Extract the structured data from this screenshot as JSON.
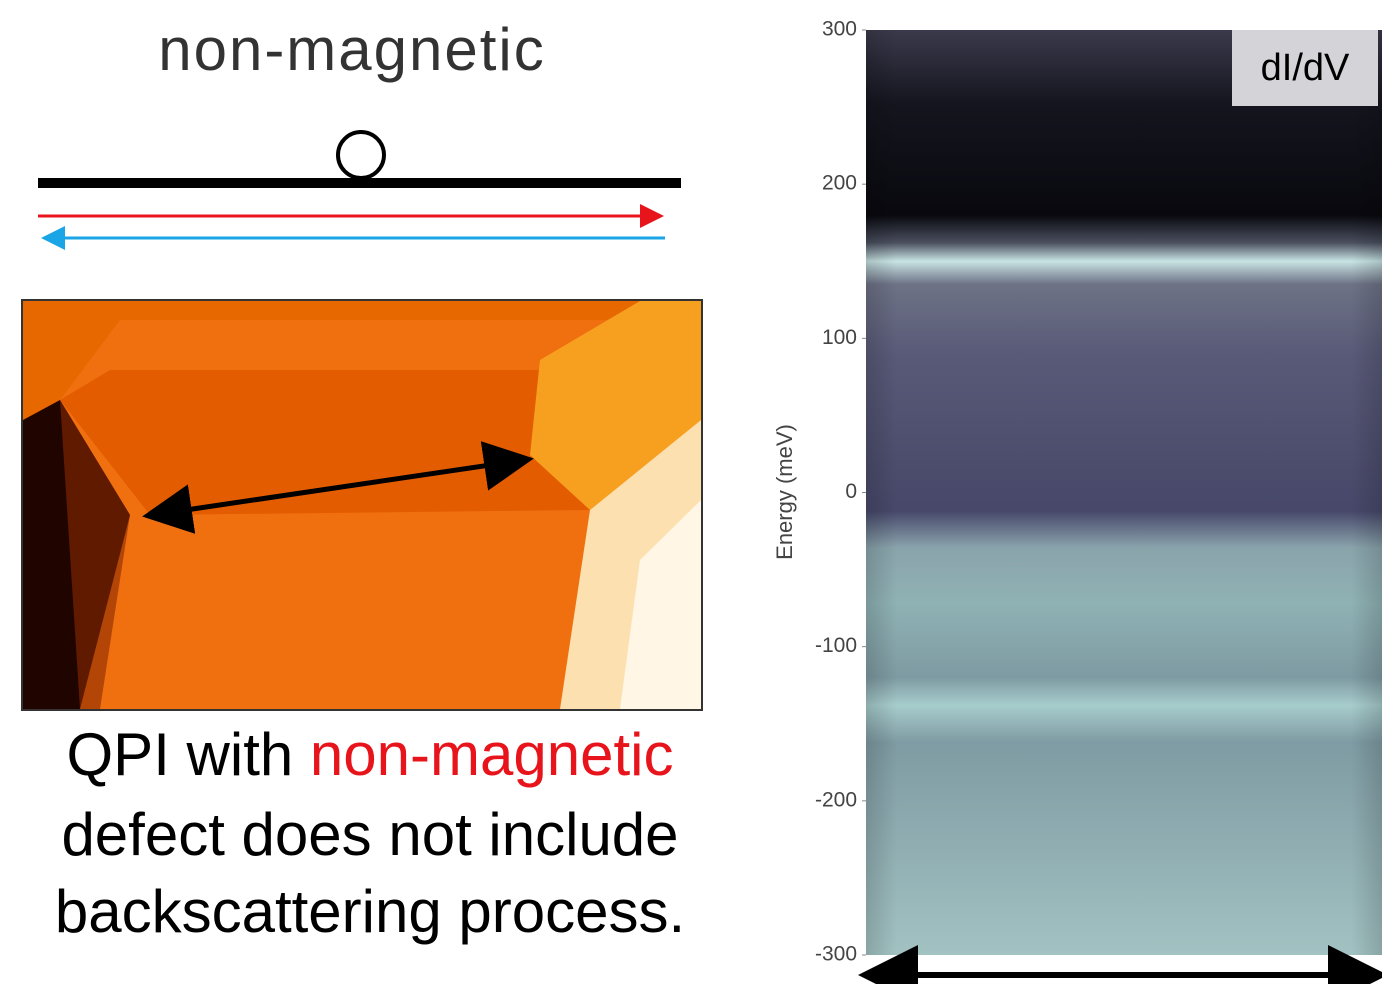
{
  "diagram": {
    "title": "non-magnetic"
  },
  "caption": {
    "prefix": "QPI with",
    "highlight": "non-magnetic",
    "line2": "defect does not include",
    "line3": "backscattering process."
  },
  "heatmap": {
    "badge": "dI/dV",
    "ylabel": "Energy (meV)",
    "ylim": [
      -300,
      300
    ],
    "yticks": [
      300,
      200,
      100,
      0,
      -100,
      -200,
      -300
    ]
  }
}
